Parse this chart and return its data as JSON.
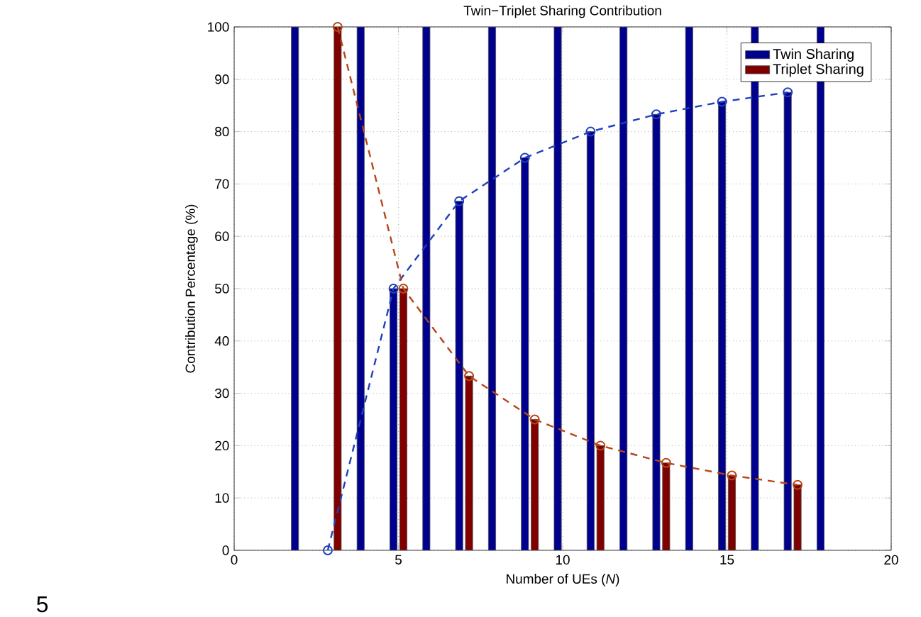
{
  "chart_data": {
    "type": "bar",
    "title": "Twin−Triplet Sharing Contribution",
    "xlabel": "Number of UEs (*N*)",
    "ylabel": "Contribution Percentage (%)",
    "series": [
      {
        "name": "Twin Sharing",
        "color": "#00008f",
        "x": [
          1.85,
          3.85,
          4.85,
          5.85,
          6.85,
          7.85,
          8.85,
          9.85,
          10.85,
          11.85,
          12.85,
          13.85,
          14.85,
          15.85,
          16.85,
          17.85
        ],
        "values": [
          100,
          100,
          50,
          100,
          66.7,
          100,
          75,
          100,
          80,
          100,
          83.3,
          100,
          85.7,
          100,
          87.5,
          100
        ]
      },
      {
        "name": "Triplet Sharing",
        "color": "#800000",
        "x": [
          3.15,
          5.15,
          7.15,
          9.15,
          11.15,
          13.15,
          15.15,
          17.15
        ],
        "values": [
          100,
          50,
          33.3,
          25,
          20,
          16.7,
          14.3,
          12.5
        ]
      },
      {
        "type": "line",
        "color": "#1f3fbf",
        "marker": "circle",
        "line_style": "dashed",
        "x": [
          2.85,
          4.85,
          6.85,
          8.85,
          10.85,
          12.85,
          14.85,
          16.85
        ],
        "values": [
          0,
          50,
          66.7,
          75,
          80,
          83.3,
          85.7,
          87.5
        ]
      },
      {
        "type": "line",
        "color": "#b5461a",
        "marker": "circle",
        "line_style": "dashed",
        "x": [
          3.15,
          5.15,
          7.15,
          9.15,
          11.15,
          13.15,
          15.15,
          17.15
        ],
        "values": [
          100,
          50,
          33.3,
          25,
          20,
          16.7,
          14.3,
          12.5
        ]
      }
    ],
    "xlim": [
      0,
      20
    ],
    "xticks": [
      0,
      5,
      10,
      15,
      20
    ],
    "ylim": [
      0,
      100
    ],
    "yticks": [
      0,
      10,
      20,
      30,
      40,
      50,
      60,
      70,
      80,
      90,
      100
    ],
    "grid": true,
    "legend": "top right",
    "annotations": [
      "5"
    ]
  }
}
